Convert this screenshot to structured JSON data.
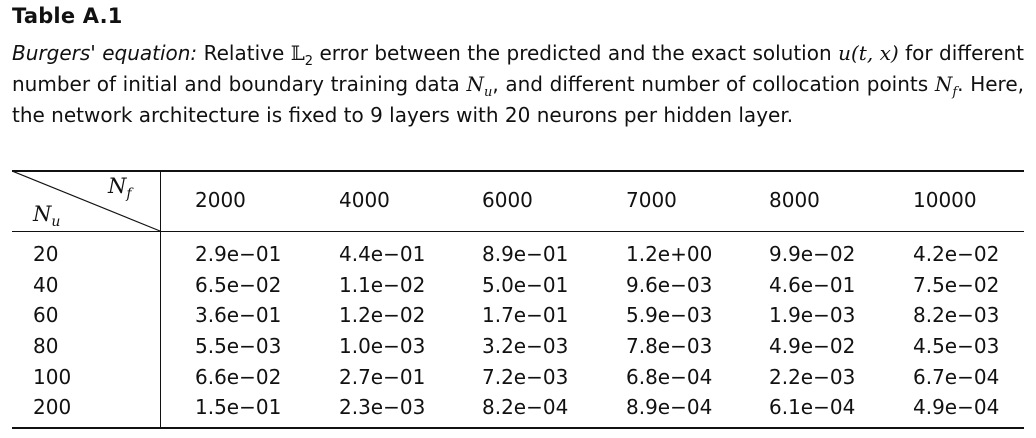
{
  "title": "Table A.1",
  "caption": {
    "italic_lead": "Burgers' equation:",
    "part1": " Relative ",
    "norm_symbol": "𝕃",
    "norm_sub": "2",
    "part2": " error between the predicted and the exact solution ",
    "u_expr": "u(t, x)",
    "part3": " for different number of initial and boundary training data ",
    "nu_base": "N",
    "nu_sub": "u",
    "part4": ", and different number of collocation points ",
    "nf_base": "N",
    "nf_sub": "f",
    "part5": ". Here, the network architecture is fixed to 9 layers with 20 neurons per hidden layer."
  },
  "table": {
    "col_header_label": {
      "base": "N",
      "sub": "f"
    },
    "row_header_label": {
      "base": "N",
      "sub": "u"
    },
    "columns": [
      "2000",
      "4000",
      "6000",
      "7000",
      "8000",
      "10000"
    ],
    "rows": [
      {
        "nu": "20",
        "values": [
          "2.9e−01",
          "4.4e−01",
          "8.9e−01",
          "1.2e+00",
          "9.9e−02",
          "4.2e−02"
        ]
      },
      {
        "nu": "40",
        "values": [
          "6.5e−02",
          "1.1e−02",
          "5.0e−01",
          "9.6e−03",
          "4.6e−01",
          "7.5e−02"
        ]
      },
      {
        "nu": "60",
        "values": [
          "3.6e−01",
          "1.2e−02",
          "1.7e−01",
          "5.9e−03",
          "1.9e−03",
          "8.2e−03"
        ]
      },
      {
        "nu": "80",
        "values": [
          "5.5e−03",
          "1.0e−03",
          "3.2e−03",
          "7.8e−03",
          "4.9e−02",
          "4.5e−03"
        ]
      },
      {
        "nu": "100",
        "values": [
          "6.6e−02",
          "2.7e−01",
          "7.2e−03",
          "6.8e−04",
          "2.2e−03",
          "6.7e−04"
        ]
      },
      {
        "nu": "200",
        "values": [
          "1.5e−01",
          "2.3e−03",
          "8.2e−04",
          "8.9e−04",
          "6.1e−04",
          "4.9e−04"
        ]
      }
    ]
  }
}
